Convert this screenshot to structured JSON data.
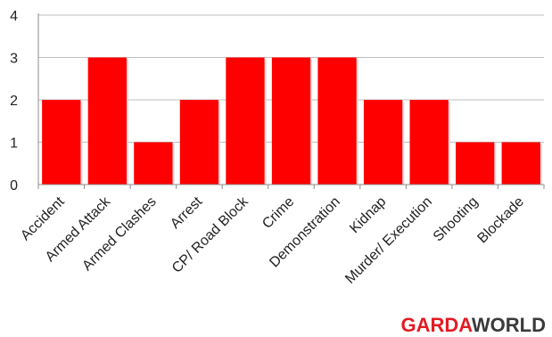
{
  "chart_data": {
    "type": "bar",
    "categories": [
      "Accident",
      "Armed Attack",
      "Armed Clashes",
      "Arrest",
      "CP/ Road Block",
      "Crime",
      "Demonstration",
      "Kidnap",
      "Murder/ Execution",
      "Shooting",
      "Blockade"
    ],
    "values": [
      2,
      3,
      1,
      2,
      3,
      3,
      3,
      2,
      2,
      1,
      1
    ],
    "ylim": [
      0,
      4
    ],
    "yticks": [
      0,
      1,
      2,
      3,
      4
    ],
    "grid": true,
    "bar_color": "#ff0000",
    "grid_color": "#bfbfbf"
  },
  "brand": {
    "part1": "GARDA",
    "part2": "WORLD",
    "color1": "#e31b23",
    "color2": "#3a3a3a"
  }
}
